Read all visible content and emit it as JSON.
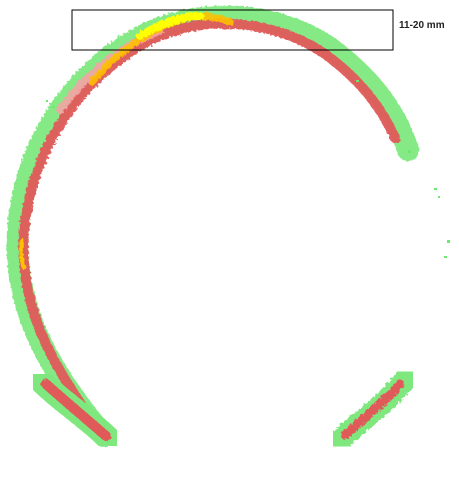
{
  "annotation": {
    "label": "11-20 mm"
  },
  "colors": {
    "background": "#ffffff",
    "low": "#6fe86f",
    "mid": "#e06060",
    "mid_light": "#f2a0a0",
    "high": "#ffff00",
    "high_edge": "#ffc000",
    "box_stroke": "#000000"
  }
}
